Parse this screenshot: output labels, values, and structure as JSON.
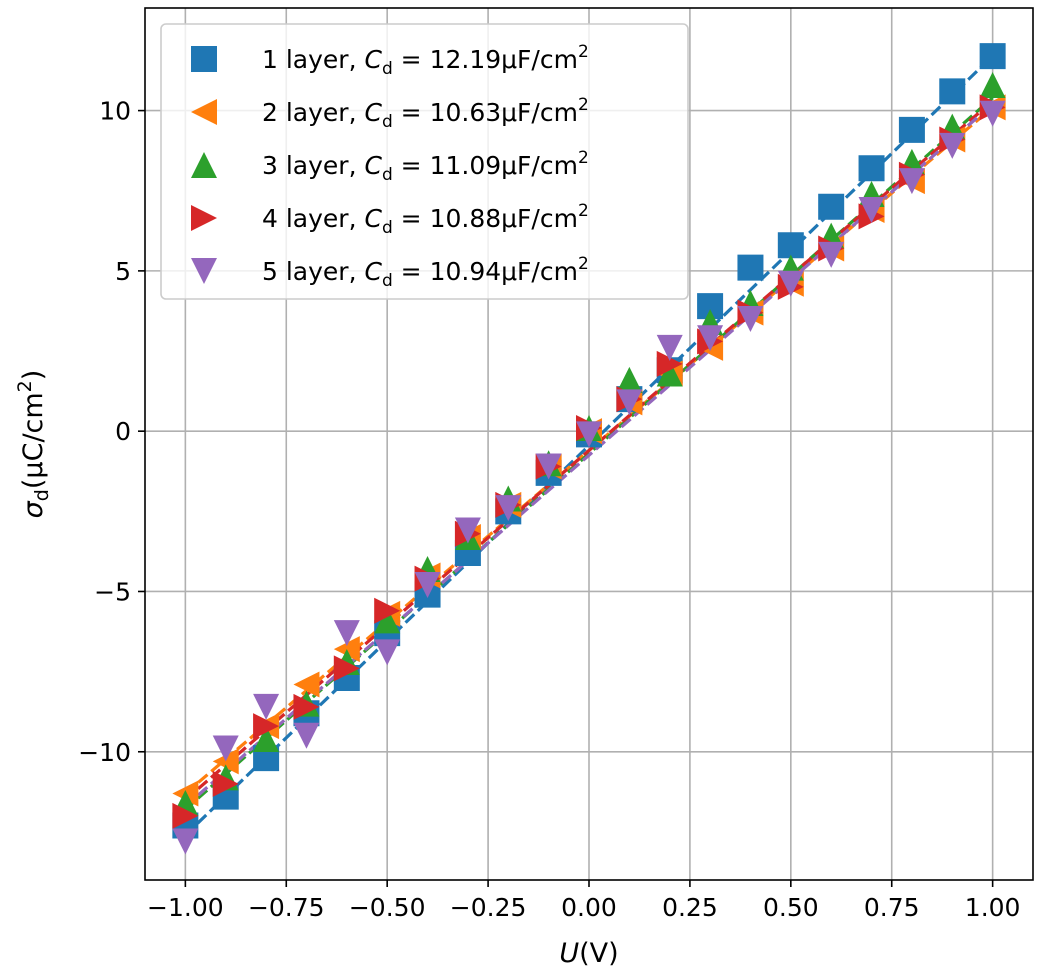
{
  "chart_data": {
    "type": "scatter",
    "xlabel": "U(V)",
    "ylabel": "σd(μC/cm2)",
    "xlim": [
      -1.1,
      1.1
    ],
    "ylim": [
      -14,
      13.2
    ],
    "xticks": [
      -1.0,
      -0.75,
      -0.5,
      -0.25,
      0.0,
      0.25,
      0.5,
      0.75,
      1.0
    ],
    "xtick_labels": [
      "−1.00",
      "−0.75",
      "−0.50",
      "−0.25",
      "0.00",
      "0.25",
      "0.50",
      "0.75",
      "1.00"
    ],
    "yticks": [
      -10,
      -5,
      0,
      5,
      10
    ],
    "ytick_labels": [
      "−10",
      "−5",
      "0",
      "5",
      "10"
    ],
    "grid": true,
    "legend_position": "upper-left",
    "x": [
      -1.0,
      -0.9,
      -0.8,
      -0.7,
      -0.6,
      -0.5,
      -0.4,
      -0.3,
      -0.2,
      -0.1,
      0.0,
      0.1,
      0.2,
      0.3,
      0.4,
      0.5,
      0.6,
      0.7,
      0.8,
      0.9,
      1.0
    ],
    "series": [
      {
        "name": "1 layer",
        "label_prefix": "1 layer, ",
        "label_value": "12.19μF/cm",
        "marker": "square",
        "color": "#1f77b4",
        "values": [
          -12.3,
          -11.4,
          -10.2,
          -8.8,
          -7.7,
          -6.3,
          -5.1,
          -3.8,
          -2.5,
          -1.3,
          -0.1,
          1.0,
          1.9,
          3.9,
          5.1,
          5.8,
          7.0,
          8.2,
          9.4,
          10.6,
          11.7
        ],
        "fit": [
          -12.6,
          11.7
        ]
      },
      {
        "name": "2 layer",
        "label_prefix": "2 layer, ",
        "label_value": "10.63μF/cm",
        "marker": "triangle-left",
        "color": "#ff7f0e",
        "values": [
          -11.3,
          -10.3,
          -9.2,
          -7.9,
          -6.8,
          -5.7,
          -4.5,
          -3.3,
          -2.3,
          -1.1,
          0.0,
          0.9,
          1.8,
          2.6,
          3.7,
          4.6,
          5.7,
          6.9,
          7.8,
          9.1,
          10.1
        ],
        "fit": [
          -11.3,
          10.1
        ]
      },
      {
        "name": "3 layer",
        "label_prefix": "3 layer, ",
        "label_value": "11.09μF/cm",
        "marker": "triangle-up",
        "color": "#2ca02c",
        "values": [
          -11.6,
          -10.8,
          -9.6,
          -8.5,
          -7.2,
          -5.9,
          -4.3,
          -3.3,
          -2.1,
          -1.0,
          0.1,
          1.6,
          1.8,
          3.4,
          4.0,
          5.1,
          6.1,
          7.4,
          8.4,
          9.5,
          10.8
        ],
        "fit": [
          -11.8,
          10.4
        ]
      },
      {
        "name": "4 layer",
        "label_prefix": "4 layer, ",
        "label_value": "10.88μF/cm",
        "marker": "triangle-right",
        "color": "#d62728",
        "values": [
          -12.0,
          -11.0,
          -9.2,
          -8.6,
          -7.4,
          -5.6,
          -4.6,
          -3.2,
          -2.3,
          -1.1,
          0.1,
          1.0,
          2.1,
          2.8,
          3.7,
          4.5,
          5.7,
          6.7,
          8.0,
          9.1,
          10.1
        ],
        "fit": [
          -11.5,
          10.3
        ]
      },
      {
        "name": "5 layer",
        "label_prefix": "5 layer, ",
        "label_value": "10.94μF/cm",
        "marker": "triangle-down",
        "color": "#9467bd",
        "values": [
          -12.8,
          -9.9,
          -8.6,
          -9.5,
          -6.3,
          -6.9,
          -4.8,
          -3.1,
          -2.4,
          -1.1,
          -0.1,
          0.9,
          2.6,
          2.9,
          3.5,
          4.6,
          5.5,
          6.9,
          7.8,
          8.9,
          9.9
        ],
        "fit": [
          -11.7,
          10.2
        ]
      }
    ]
  }
}
